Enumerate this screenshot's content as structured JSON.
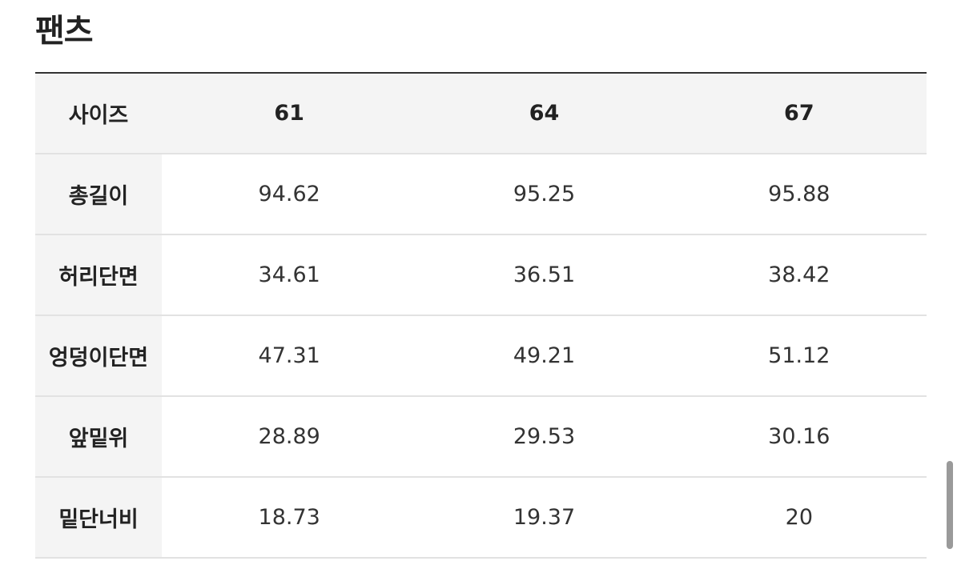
{
  "header": {
    "title": "팬츠"
  },
  "table": {
    "columns": [
      "사이즈",
      61,
      64,
      67
    ],
    "rows": [
      [
        "총길이",
        94.62,
        95.25,
        95.88
      ],
      [
        "허리단면",
        34.61,
        36.51,
        38.42
      ],
      [
        "엉덩이단면",
        47.31,
        49.21,
        51.12
      ],
      [
        "앞밑위",
        28.89,
        29.53,
        30.16
      ],
      [
        "밑단너비",
        18.73,
        19.37,
        20
      ]
    ]
  }
}
